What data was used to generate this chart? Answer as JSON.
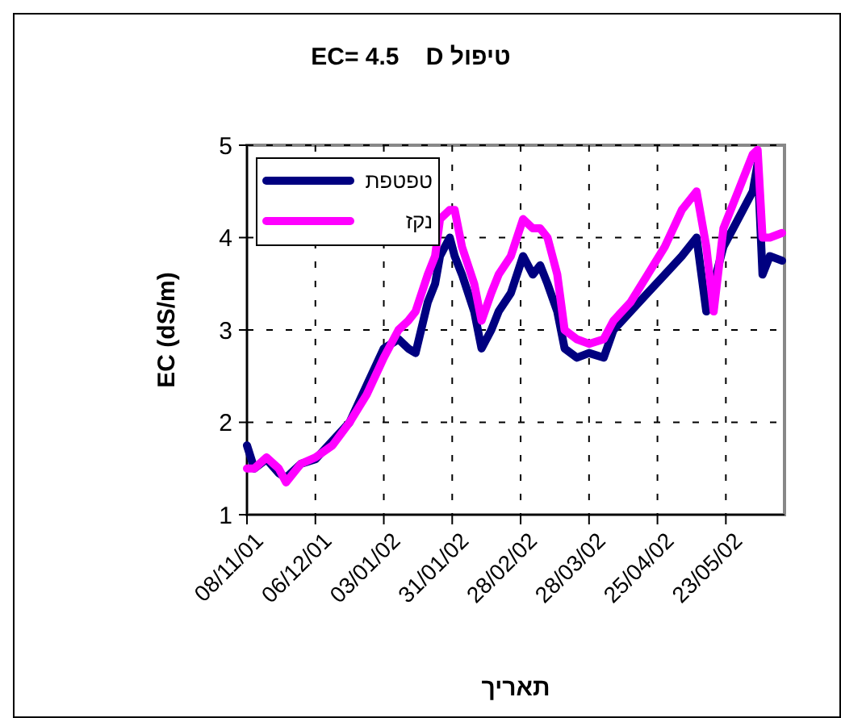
{
  "chart_data": {
    "type": "line",
    "title": "EC= 4.5    D טיפול",
    "xlabel": "תאריך",
    "ylabel": "EC (dS/m)",
    "x": [
      "2001-11-08",
      "2001-11-11",
      "2001-11-16",
      "2001-11-21",
      "2001-11-24",
      "2001-11-30",
      "2001-12-06",
      "2001-12-13",
      "2001-12-20",
      "2001-12-27",
      "2002-01-03",
      "2002-01-09",
      "2002-01-13",
      "2002-01-16",
      "2002-01-21",
      "2002-01-24",
      "2002-01-26",
      "2002-01-30",
      "2002-02-01",
      "2002-02-04",
      "2002-02-09",
      "2002-02-12",
      "2002-02-16",
      "2002-02-19",
      "2002-02-24",
      "2002-03-01",
      "2002-03-05",
      "2002-03-08",
      "2002-03-11",
      "2002-03-15",
      "2002-03-18",
      "2002-03-23",
      "2002-03-28",
      "2002-04-03",
      "2002-04-07",
      "2002-04-14",
      "2002-04-21",
      "2002-04-28",
      "2002-05-05",
      "2002-05-11",
      "2002-05-15",
      "2002-05-18",
      "2002-05-22",
      "2002-05-28",
      "2002-06-03",
      "2002-06-05",
      "2002-06-07",
      "2002-06-10",
      "2002-06-15"
    ],
    "series": [
      {
        "name": "טפטפת",
        "color": "#000080",
        "values": [
          1.75,
          1.5,
          1.6,
          1.45,
          1.4,
          1.55,
          1.6,
          1.8,
          2.0,
          2.4,
          2.8,
          2.9,
          2.8,
          2.75,
          3.3,
          3.5,
          3.8,
          4.0,
          3.8,
          3.6,
          3.2,
          2.8,
          3.0,
          3.2,
          3.4,
          3.8,
          3.6,
          3.7,
          3.5,
          3.2,
          2.8,
          2.7,
          2.75,
          2.7,
          3.0,
          3.2,
          3.4,
          3.6,
          3.8,
          4.0,
          3.2,
          3.5,
          3.9,
          4.2,
          4.5,
          4.8,
          3.6,
          3.8,
          3.75
        ]
      },
      {
        "name": "נקז",
        "color": "#ff00ff",
        "values": [
          1.5,
          1.5,
          1.62,
          1.5,
          1.35,
          1.55,
          1.62,
          1.75,
          2.0,
          2.3,
          2.7,
          3.0,
          3.1,
          3.2,
          3.6,
          3.8,
          4.2,
          4.3,
          4.3,
          3.9,
          3.5,
          3.1,
          3.4,
          3.6,
          3.8,
          4.2,
          4.1,
          4.1,
          4.0,
          3.6,
          3.0,
          2.9,
          2.85,
          2.9,
          3.1,
          3.3,
          3.6,
          3.9,
          4.3,
          4.5,
          3.9,
          3.2,
          4.1,
          4.5,
          4.9,
          4.95,
          4.0,
          4.0,
          4.05
        ]
      }
    ],
    "xlim": [
      "2001-11-08",
      "2002-06-16"
    ],
    "xticks": [
      {
        "value": "2001-11-08",
        "label": "08/11/01"
      },
      {
        "value": "2001-12-06",
        "label": "06/12/01"
      },
      {
        "value": "2002-01-03",
        "label": "03/01/02"
      },
      {
        "value": "2002-01-31",
        "label": "31/01/02"
      },
      {
        "value": "2002-02-28",
        "label": "28/02/02"
      },
      {
        "value": "2002-03-28",
        "label": "28/03/02"
      },
      {
        "value": "2002-04-25",
        "label": "25/04/02"
      },
      {
        "value": "2002-05-23",
        "label": "23/05/02"
      }
    ],
    "ylim": [
      1,
      5
    ],
    "yticks": [
      1,
      2,
      3,
      4,
      5
    ],
    "grid": true,
    "legend": "top left",
    "line_style": "solid"
  }
}
